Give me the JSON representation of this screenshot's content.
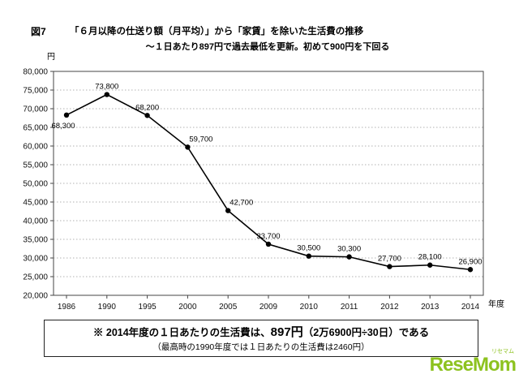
{
  "figure": {
    "label": "図7"
  },
  "chart_data": {
    "type": "line",
    "title": "「６月以降の仕送り額（月平均）」から「家賃」を除いた生活費の推移",
    "subtitle": "～１日あたり897円で過去最低を更新。初めて900円を下回る",
    "ylabel": "円",
    "xlabel": "年度",
    "categories": [
      "1986",
      "1990",
      "1995",
      "2000",
      "2005",
      "2009",
      "2010",
      "2011",
      "2012",
      "2013",
      "2014"
    ],
    "values": [
      68300,
      73800,
      68200,
      59700,
      42700,
      33700,
      30500,
      30300,
      27700,
      28100,
      26900
    ],
    "point_labels": [
      "68,300",
      "73,800",
      "68,200",
      "59,700",
      "42,700",
      "33,700",
      "30,500",
      "30,300",
      "27,700",
      "28,100",
      "26,900"
    ],
    "ylim": [
      20000,
      80000
    ],
    "ytick_step": 5000,
    "grid": true,
    "legend_position": "none",
    "line_color": "#000000",
    "marker_color": "#000000"
  },
  "footnote": {
    "line1_prefix": "※ 2014年度の１日あたりの生活費は、",
    "line1_emph": "897円",
    "line1_suffix": "（2万6900円÷30日）である",
    "line2": "（最高時の1990年度では１日あたりの生活費は2460円）"
  },
  "watermark": {
    "text": "ReseMom",
    "kana": "リセマム",
    "color": "#8dc21f"
  }
}
